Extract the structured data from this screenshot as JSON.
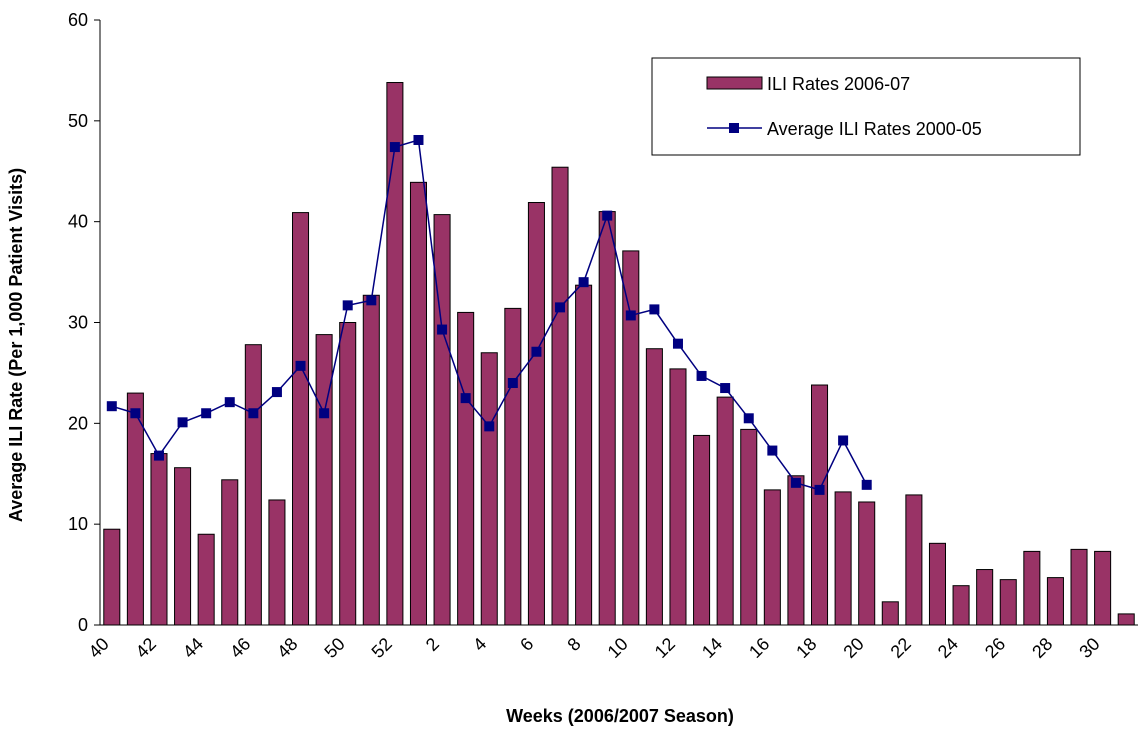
{
  "chart_data": {
    "type": "bar_line",
    "x_label": "Weeks (2006/2007 Season)",
    "y_label": "Average ILI Rate (Per 1,000 Patient Visits)",
    "categories": [
      "40",
      null,
      "42",
      null,
      "44",
      null,
      "46",
      null,
      "48",
      null,
      "50",
      null,
      "52",
      null,
      "2",
      null,
      "4",
      null,
      "6",
      null,
      "8",
      null,
      "10",
      null,
      "12",
      null,
      "14",
      null,
      "16",
      null,
      "18",
      null,
      "20",
      null,
      "22",
      null,
      "24",
      null,
      "26",
      null,
      "28",
      null,
      "30",
      null
    ],
    "series": [
      {
        "name": "ILI Rates 2006-07",
        "type": "bar",
        "color": "#993366",
        "values": [
          9.5,
          23,
          17,
          15.6,
          9,
          14.4,
          27.8,
          12.4,
          40.9,
          28.8,
          30,
          32.7,
          53.8,
          43.9,
          40.7,
          31,
          27,
          31.4,
          41.9,
          45.4,
          33.7,
          41,
          37.1,
          27.4,
          25.4,
          18.8,
          22.6,
          19.4,
          13.4,
          14.8,
          23.8,
          13.2,
          12.2,
          2.3,
          12.9,
          8.1,
          3.9,
          5.5,
          4.5,
          7.3,
          4.7,
          7.5,
          7.3,
          1.1
        ]
      },
      {
        "name": "Average ILI Rates 2000-05",
        "type": "line",
        "color": "#000080",
        "values": [
          21.7,
          21,
          16.8,
          20.1,
          21,
          22.1,
          21,
          23.1,
          25.7,
          21,
          31.7,
          32.2,
          47.4,
          48.1,
          29.3,
          22.5,
          19.7,
          24,
          27.1,
          31.5,
          34,
          40.6,
          30.7,
          31.3,
          27.9,
          24.7,
          23.5,
          20.5,
          17.3,
          14.1,
          13.4,
          18.3,
          13.9,
          null,
          null,
          null,
          null,
          null,
          null,
          null,
          null,
          null,
          null,
          null
        ]
      }
    ],
    "ylim": [
      0,
      60
    ],
    "yticks": [
      0,
      10,
      20,
      30,
      40,
      50,
      60
    ],
    "grid": false,
    "legend": "top-right"
  }
}
